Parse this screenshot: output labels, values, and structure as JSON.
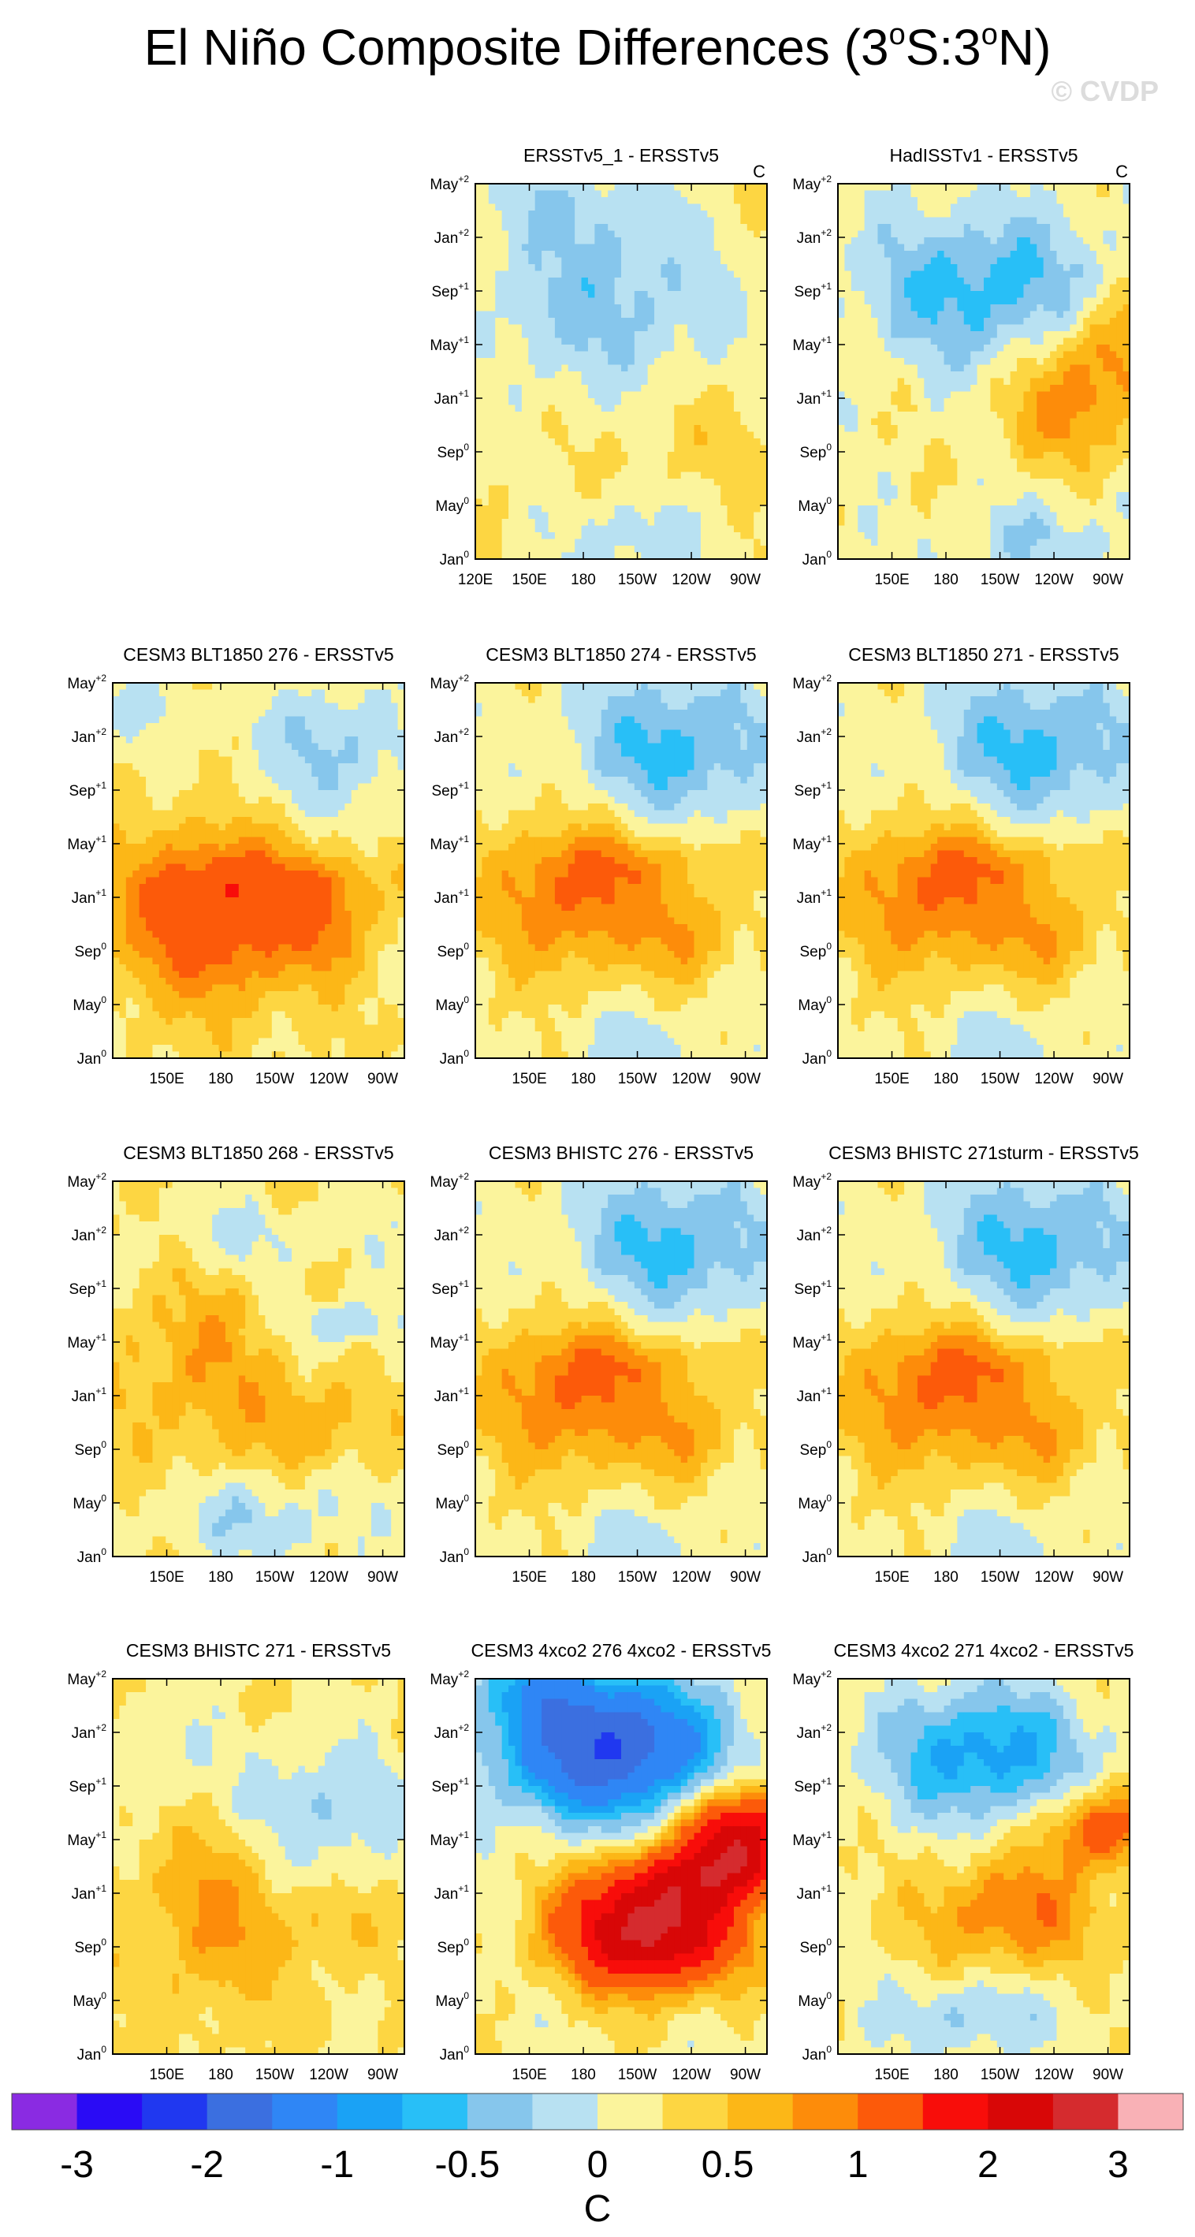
{
  "page": {
    "title_main": "El Niño Composite Differences (3",
    "title_deg1": "o",
    "title_mid": "S:3",
    "title_deg2": "o",
    "title_end": "N)",
    "watermark": "© CVDP"
  },
  "chart_data": {
    "type": "heatmap",
    "description_units": "C",
    "colorbar": {
      "tick_labels": [
        "-3",
        "-2",
        "-1",
        "-0.5",
        "0",
        "0.5",
        "1",
        "2",
        "3"
      ],
      "levels": [
        -3,
        -2.5,
        -2,
        -1.5,
        -1,
        -0.75,
        -0.5,
        -0.25,
        0,
        0.25,
        0.5,
        0.75,
        1,
        1.5,
        2,
        2.5,
        3
      ],
      "colors": [
        "#8a2be2",
        "#2a0bf5",
        "#2038f0",
        "#3b6fe0",
        "#2f86f5",
        "#1aa2f5",
        "#28bff7",
        "#86c6ec",
        "#b8e1f2",
        "#fbf49c",
        "#fdd642",
        "#fcb717",
        "#fd8c0a",
        "#fc5a0a",
        "#f80d0a",
        "#d80707",
        "#d52b2e",
        "#f9b1b6"
      ],
      "label": "C"
    },
    "y_axis": {
      "tick_base": [
        "May",
        "Jan",
        "Sep",
        "May",
        "Jan",
        "Sep",
        "May",
        "Jan"
      ],
      "tick_sup": [
        "+2",
        "+2",
        "+1",
        "+1",
        "+1",
        "0",
        "0",
        "0"
      ]
    },
    "x_axis": {
      "ticks_full": [
        "120E",
        "150E",
        "180",
        "150W",
        "120W",
        "90W"
      ],
      "ticks_model": [
        "150E",
        "180",
        "150W",
        "120W",
        "90W"
      ]
    },
    "panels": [
      {
        "title": "ERSSTv5_1 - ERSSTv5",
        "units": "C",
        "row": 0,
        "col": 1,
        "pattern": "obs1",
        "xticks": "full"
      },
      {
        "title": "HadISSTv1 - ERSSTv5",
        "units": "C",
        "row": 0,
        "col": 2,
        "pattern": "obs2",
        "xticks": "model"
      },
      {
        "title": "CESM3 BLT1850 276 - ERSSTv5",
        "units": "",
        "row": 1,
        "col": 0,
        "pattern": "warm3",
        "xticks": "model"
      },
      {
        "title": "CESM3 BLT1850 274 - ERSSTv5",
        "units": "",
        "row": 1,
        "col": 1,
        "pattern": "warm2",
        "xticks": "model"
      },
      {
        "title": "CESM3 BLT1850 271 - ERSSTv5",
        "units": "",
        "row": 1,
        "col": 2,
        "pattern": "warm2",
        "xticks": "model"
      },
      {
        "title": "CESM3 BLT1850 268 - ERSSTv5",
        "units": "",
        "row": 2,
        "col": 0,
        "pattern": "mixed",
        "xticks": "model"
      },
      {
        "title": "CESM3 BHISTC 276 - ERSSTv5",
        "units": "",
        "row": 2,
        "col": 1,
        "pattern": "warm2",
        "xticks": "model"
      },
      {
        "title": "CESM3 BHISTC 271sturm - ERSSTv5",
        "units": "",
        "row": 2,
        "col": 2,
        "pattern": "warm2",
        "xticks": "model"
      },
      {
        "title": "CESM3 BHISTC 271 - ERSSTv5",
        "units": "",
        "row": 3,
        "col": 0,
        "pattern": "warm1",
        "xticks": "model"
      },
      {
        "title": "CESM3 4xco2 276 4xco2 - ERSSTv5",
        "units": "",
        "row": 3,
        "col": 1,
        "pattern": "strong",
        "xticks": "model"
      },
      {
        "title": "CESM3 4xco2 271 4xco2 - ERSSTv5",
        "units": "",
        "row": 3,
        "col": 2,
        "pattern": "strong2",
        "xticks": "model"
      }
    ]
  }
}
